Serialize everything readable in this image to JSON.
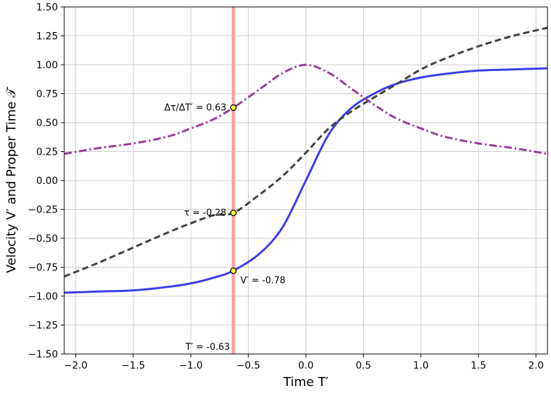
{
  "chart_data": {
    "type": "line",
    "xlabel": "Time T′",
    "ylabel": "Velocity V′ and Proper Time 𝒯",
    "xlim": [
      -2.1,
      2.1
    ],
    "ylim": [
      -1.5,
      1.5
    ],
    "x_ticks": [
      "−2.0",
      "−1.5",
      "−1.0",
      "−0.5",
      "0.0",
      "0.5",
      "1.0",
      "1.5",
      "2.0"
    ],
    "y_ticks": [
      "−1.50",
      "−1.25",
      "−1.00",
      "−0.75",
      "−0.50",
      "−0.25",
      "0.00",
      "0.25",
      "0.50",
      "0.75",
      "1.00",
      "1.25",
      "1.50"
    ],
    "grid": true,
    "x": [
      -2.1,
      -1.8,
      -1.5,
      -1.2,
      -1.0,
      -0.8,
      -0.63,
      -0.4,
      -0.2,
      0.0,
      0.2,
      0.4,
      0.63,
      0.8,
      1.0,
      1.2,
      1.5,
      1.8,
      2.1
    ],
    "series": [
      {
        "role": "velocity",
        "style": "solid",
        "color": "#3b3bf0",
        "values": [
          -0.97,
          -0.96,
          -0.95,
          -0.92,
          -0.89,
          -0.84,
          -0.78,
          -0.63,
          -0.4,
          0.0,
          0.4,
          0.63,
          0.77,
          0.84,
          0.89,
          0.92,
          0.95,
          0.96,
          0.97
        ]
      },
      {
        "role": "proper_time",
        "style": "dashed",
        "color": "#404040",
        "values": [
          -0.83,
          -0.71,
          -0.58,
          -0.45,
          -0.37,
          -0.3,
          -0.28,
          -0.12,
          0.04,
          0.24,
          0.45,
          0.6,
          0.74,
          0.84,
          0.96,
          1.05,
          1.16,
          1.25,
          1.32
        ]
      },
      {
        "role": "dtau_dT",
        "style": "dashdot",
        "color": "#9b3b9b",
        "values": [
          0.23,
          0.28,
          0.32,
          0.38,
          0.45,
          0.53,
          0.63,
          0.79,
          0.93,
          1.0,
          0.93,
          0.79,
          0.63,
          0.53,
          0.45,
          0.38,
          0.32,
          0.28,
          0.23
        ]
      }
    ],
    "vline": {
      "x": -0.63,
      "color": "#f6a2a2"
    },
    "markers": [
      {
        "x": -0.63,
        "y": 0.63,
        "label": "Δτ/ΔT′ = 0.63"
      },
      {
        "x": -0.63,
        "y": -0.28,
        "label": "τ = -0.28"
      },
      {
        "x": -0.63,
        "y": -0.78,
        "label": "V′ = -0.78"
      }
    ],
    "vline_label": "T′ = -0.63"
  }
}
